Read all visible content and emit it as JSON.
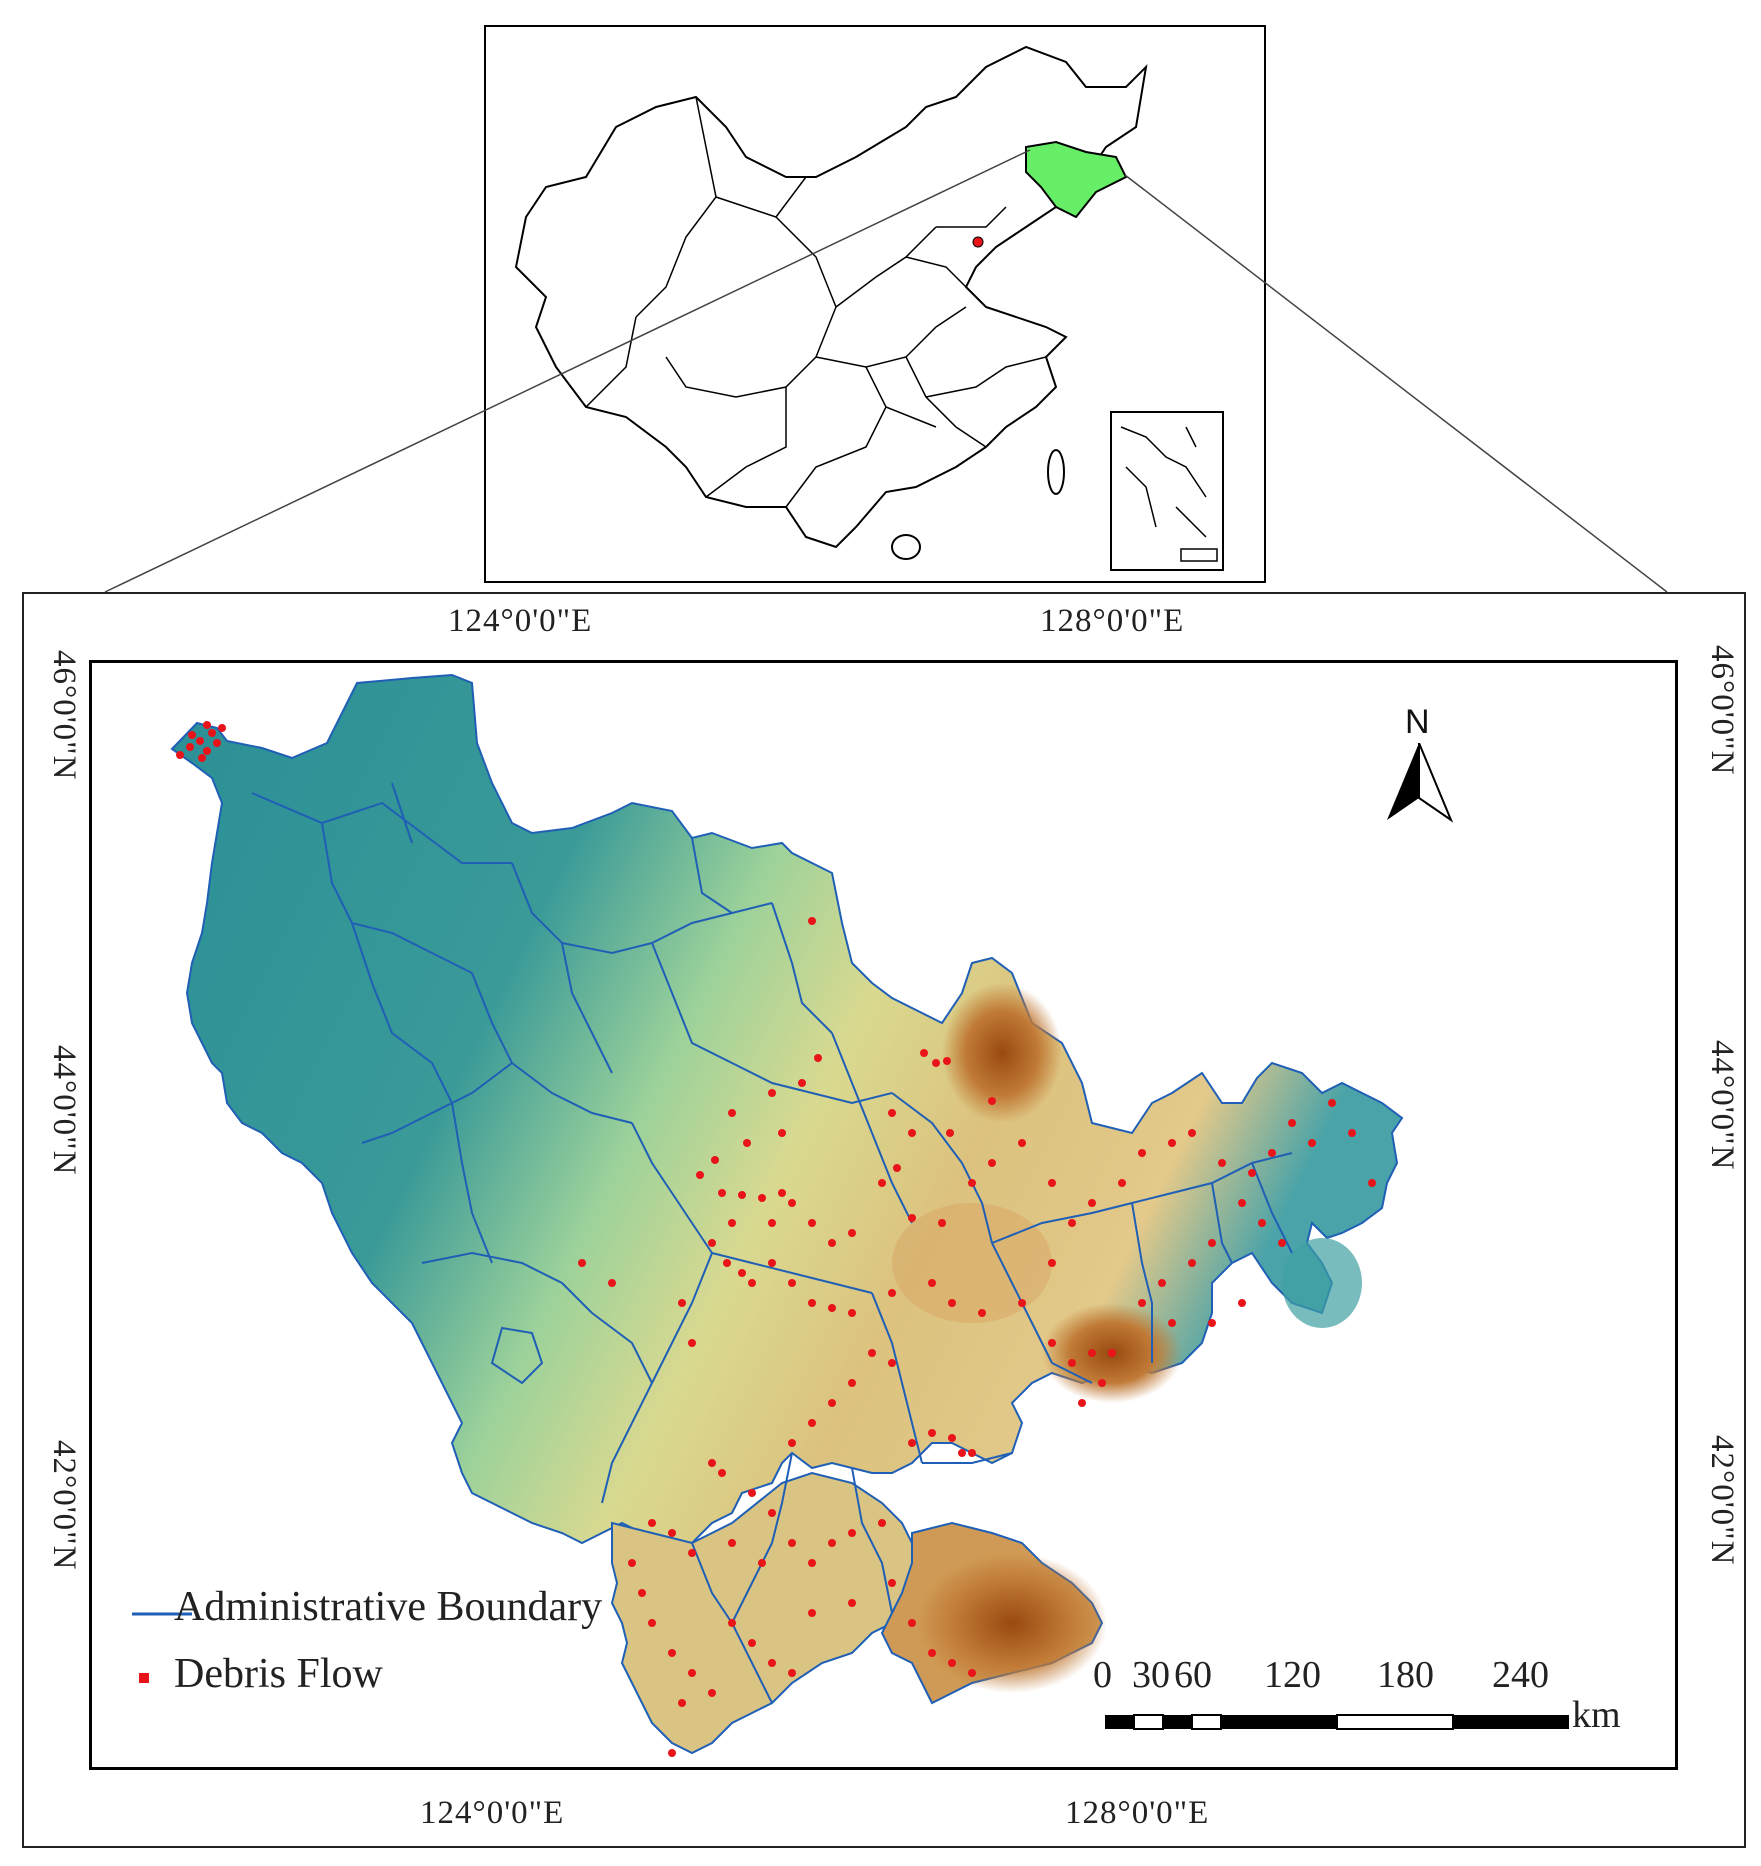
{
  "inset": {
    "highlight_color": "#66ee66"
  },
  "coordinates": {
    "top_lon": [
      "124°0'0\"E",
      "128°0'0\"E"
    ],
    "bottom_lon": [
      "124°0'0\"E",
      "128°0'0\"E"
    ],
    "left_lat": [
      "46°0'0\"N",
      "44°0'0\"N",
      "42°0'0\"N"
    ],
    "right_lat": [
      "46°0'0\"N",
      "44°0'0\"N",
      "42°0'0\"N"
    ]
  },
  "legend": {
    "boundary_label": "Administrative Boundary",
    "boundary_color": "#1f5fb5",
    "debris_label": "Debris Flow",
    "debris_color": "#e8141a"
  },
  "north_arrow": {
    "label": "N",
    "icon": "north-arrow-icon"
  },
  "scale_bar": {
    "ticks": [
      "0",
      "30",
      "60",
      "120",
      "180",
      "240"
    ],
    "unit": "km"
  },
  "elevation_colors": [
    "#2a8f96",
    "#bfe09a",
    "#e6cc8a",
    "#c07a36",
    "#9a4a10"
  ]
}
